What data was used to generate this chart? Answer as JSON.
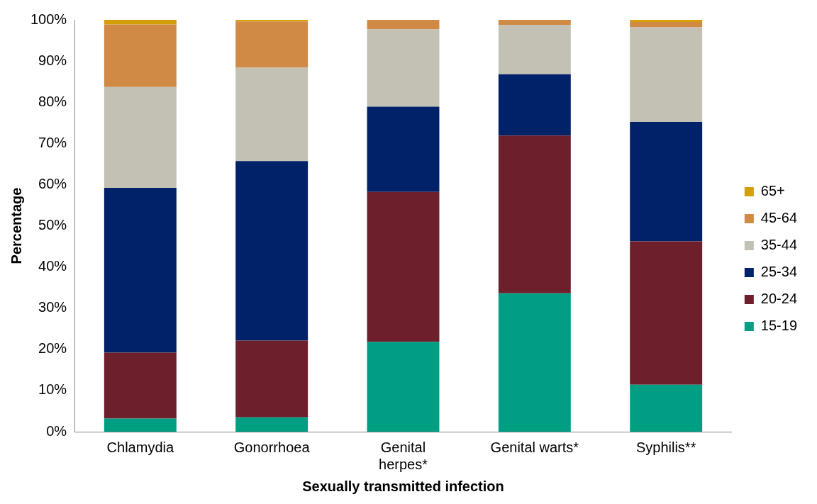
{
  "chart_data": {
    "type": "bar",
    "stacked": true,
    "xlabel": "Sexually transmitted infection",
    "ylabel": "Percentage",
    "categories": [
      "Chlamydia",
      "Gonorrhoea",
      "Genital herpes*",
      "Genital warts*",
      "Syphilis**"
    ],
    "series": [
      {
        "name": "15-19",
        "color": "#009e82",
        "values": [
          3.2,
          3.5,
          21.8,
          33.6,
          11.4
        ]
      },
      {
        "name": "20-24",
        "color": "#6e1f2c",
        "values": [
          16,
          18.6,
          36.4,
          38.3,
          34.8
        ]
      },
      {
        "name": "25-34",
        "color": "#002269",
        "values": [
          40,
          43.6,
          20.7,
          14.9,
          29
        ]
      },
      {
        "name": "35-44",
        "color": "#c3c0b4",
        "values": [
          24.5,
          22.7,
          18.8,
          12,
          23
        ]
      },
      {
        "name": "45-64",
        "color": "#d08a45",
        "values": [
          15.2,
          11.2,
          2.3,
          1.2,
          1.3
        ]
      },
      {
        "name": "65+",
        "color": "#d4a00a",
        "values": [
          1.1,
          0.4,
          0,
          0,
          0.5
        ]
      }
    ],
    "ylim": [
      0,
      100
    ],
    "yticks": [
      {
        "value": 0,
        "label": "0%"
      },
      {
        "value": 10,
        "label": "10%"
      },
      {
        "value": 20,
        "label": "20%"
      },
      {
        "value": 30,
        "label": "30%"
      },
      {
        "value": 40,
        "label": "40%"
      },
      {
        "value": 50,
        "label": "50%"
      },
      {
        "value": 60,
        "label": "60%"
      },
      {
        "value": 70,
        "label": "70%"
      },
      {
        "value": 80,
        "label": "80%"
      },
      {
        "value": 90,
        "label": "90%"
      },
      {
        "value": 100,
        "label": "100%"
      }
    ],
    "grid": false,
    "legend": "right"
  }
}
